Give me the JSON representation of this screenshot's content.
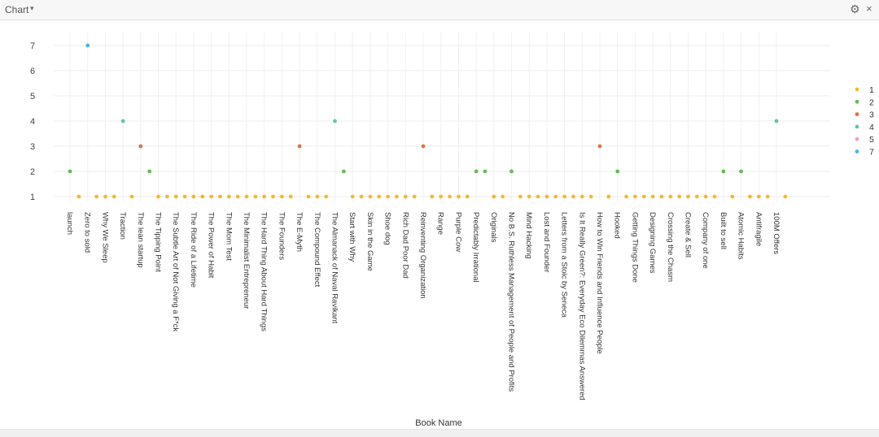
{
  "window": {
    "title": "Chart",
    "settings_icon": "gear-icon",
    "close_icon": "close-icon"
  },
  "colors": {
    "1": "#f5b92e",
    "2": "#66bb5a",
    "3": "#e76f45",
    "4": "#5ec7a3",
    "5": "#f2a4b3",
    "7": "#4fb3e8"
  },
  "chart_data": {
    "type": "scatter",
    "title": "",
    "xlabel": "Book Name",
    "ylabel": "",
    "ylim": [
      1,
      7
    ],
    "yticks": [
      1,
      2,
      3,
      4,
      5,
      6,
      7
    ],
    "grid": true,
    "legend": {
      "placement": "right",
      "entries": [
        "1",
        "2",
        "3",
        "4",
        "5",
        "7"
      ]
    },
    "categories": [
      "launch",
      "",
      "Zero to sold",
      "",
      "Why We Sleep",
      "",
      "Traction",
      "",
      "The lean startup",
      "",
      "The Tipping Point",
      "",
      "The Subtle Art of Not Giving a F*ck",
      "",
      "The Ride of a Lifetime",
      "",
      "The Power of Habit",
      "",
      "The Mom Test",
      "",
      "The Minimalist Entrepreneur",
      "",
      "The Hard Thing About Hard Things",
      "",
      "The Founders",
      "",
      "The E-Myth",
      "",
      "The Compound Effect",
      "",
      "The Almanack of Naval Ravikant",
      "",
      "Start with Why",
      "",
      "Skin in the Game",
      "",
      "Shoe dog",
      "",
      "Rich Dad Poor Dad",
      "",
      "Reinventing Organization",
      "",
      "Range",
      "",
      "Purple Cow",
      "",
      "Predictably Irrational",
      "",
      "Originals",
      "",
      "No B.S. Ruthless Management of People and Profits",
      "",
      "Mind Hacking",
      "",
      "Lost and Founder",
      "",
      "Letters from a Stoic by Seneca",
      "",
      "Is It Really Green?: Everyday Eco Dilemmas Answered",
      "",
      "How to Win Friends and Influence People",
      "",
      "Hooked",
      "",
      "Getting Things Done",
      "",
      "Designing Games",
      "",
      "Crossing the Chasm",
      "",
      "Create & Sell",
      "",
      "Company of one",
      "",
      "Built to sell",
      "",
      "Atomic Habits",
      "",
      "Antifragile",
      "",
      "100M Offers",
      ""
    ],
    "values": [
      2,
      1,
      7,
      1,
      1,
      1,
      4,
      1,
      3,
      2,
      1,
      1,
      1,
      1,
      1,
      1,
      1,
      1,
      1,
      1,
      1,
      1,
      1,
      1,
      1,
      1,
      3,
      1,
      1,
      1,
      4,
      2,
      1,
      1,
      1,
      1,
      1,
      1,
      1,
      1,
      3,
      1,
      1,
      1,
      1,
      1,
      2,
      2,
      1,
      1,
      2,
      1,
      1,
      1,
      1,
      1,
      1,
      1,
      1,
      1,
      3,
      1,
      2,
      1,
      1,
      1,
      1,
      1,
      1,
      1,
      1,
      1,
      1,
      1,
      2,
      1,
      2,
      1,
      1,
      1,
      4,
      1
    ]
  }
}
